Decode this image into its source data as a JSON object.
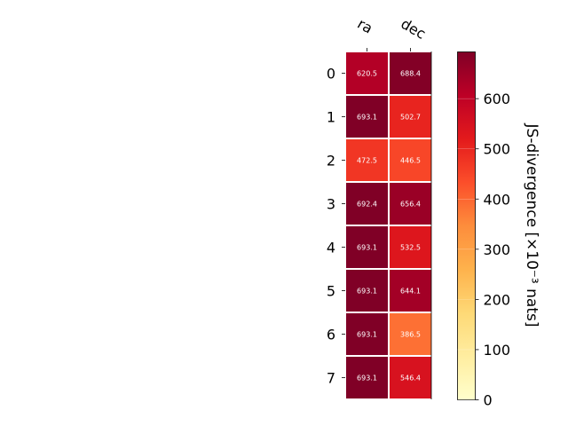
{
  "chart_data": {
    "type": "heatmap",
    "title": "",
    "columns": [
      "ra",
      "dec"
    ],
    "rows": [
      "0",
      "1",
      "2",
      "3",
      "4",
      "5",
      "6",
      "7"
    ],
    "values": [
      [
        620.5,
        688.4
      ],
      [
        693.1,
        502.7
      ],
      [
        472.5,
        446.5
      ],
      [
        692.4,
        656.4
      ],
      [
        693.1,
        532.5
      ],
      [
        693.1,
        644.1
      ],
      [
        693.1,
        386.5
      ],
      [
        693.1,
        546.4
      ]
    ],
    "value_labels": [
      [
        "620.5",
        "688.4"
      ],
      [
        "693.1",
        "502.7"
      ],
      [
        "472.5",
        "446.5"
      ],
      [
        "692.4",
        "656.4"
      ],
      [
        "693.1",
        "532.5"
      ],
      [
        "693.1",
        "644.1"
      ],
      [
        "693.1",
        "386.5"
      ],
      [
        "693.1",
        "546.4"
      ]
    ],
    "colorbar": {
      "label": "JS-divergence [×10⁻³ nats]",
      "range": [
        0,
        693.1
      ],
      "ticks": [
        0,
        100,
        200,
        300,
        400,
        500,
        600
      ],
      "tick_labels": [
        "0",
        "100",
        "200",
        "300",
        "400",
        "500",
        "600"
      ],
      "colormap": "YlOrRd"
    },
    "colormap_stops": [
      "#ffffcc",
      "#ffeda0",
      "#fed976",
      "#feb24c",
      "#fd8d3c",
      "#fc4e2a",
      "#e31a1c",
      "#bd0026",
      "#800026"
    ],
    "cell_text_color": "#ffffff"
  }
}
